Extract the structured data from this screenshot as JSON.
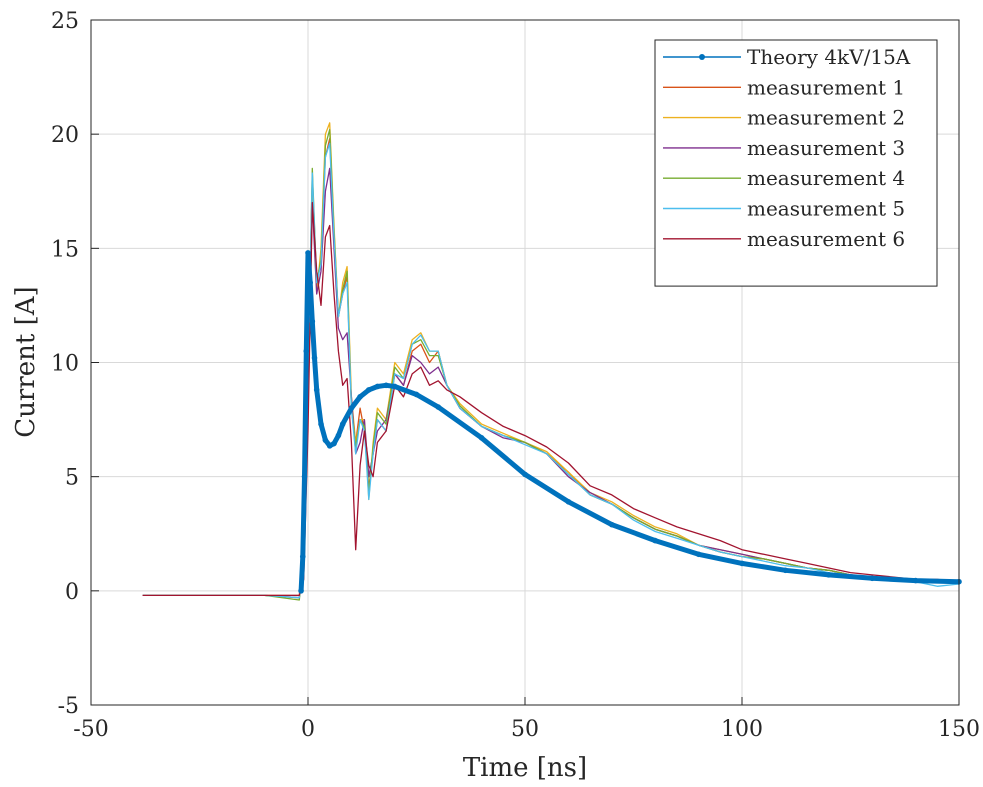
{
  "chart_data": {
    "type": "line",
    "xlabel": "Time [ns]",
    "ylabel": "Current [A]",
    "xlim": [
      -50,
      150
    ],
    "ylim": [
      -5,
      25
    ],
    "xticks": [
      -50,
      0,
      50,
      100,
      150
    ],
    "yticks": [
      -5,
      0,
      5,
      10,
      15,
      20,
      25
    ],
    "grid": true,
    "legend_position": "top-right",
    "series": [
      {
        "name": "Theory 4kV/15A",
        "color": "#0072BD",
        "style": "thick-dotted",
        "x": [
          -1.6,
          -1.2,
          -0.8,
          -0.4,
          0,
          0.5,
          1,
          1.5,
          2,
          3,
          4,
          5,
          6,
          7,
          8,
          10,
          12,
          14,
          16,
          18,
          20,
          25,
          30,
          40,
          50,
          60,
          70,
          80,
          90,
          100,
          110,
          120,
          130,
          140,
          150
        ],
        "y": [
          0.0,
          1.5,
          5.0,
          10.5,
          14.8,
          13.5,
          11.8,
          10.2,
          8.8,
          7.3,
          6.6,
          6.35,
          6.45,
          6.8,
          7.3,
          8.0,
          8.5,
          8.8,
          8.95,
          9.0,
          8.95,
          8.6,
          8.05,
          6.7,
          5.1,
          3.9,
          2.9,
          2.2,
          1.6,
          1.2,
          0.9,
          0.7,
          0.55,
          0.45,
          0.4
        ]
      },
      {
        "name": "measurement 1",
        "color": "#D95319",
        "x": [
          -38,
          -30,
          -20,
          -10,
          -2,
          -1,
          0,
          1,
          2,
          3,
          4,
          5,
          6,
          7,
          8,
          9,
          10,
          11,
          12,
          13,
          14,
          15,
          16,
          18,
          20,
          22,
          24,
          26,
          28,
          30,
          32,
          35,
          40,
          45,
          50,
          55,
          60,
          65,
          70,
          75,
          80,
          85,
          90,
          95,
          100,
          105,
          110,
          115,
          120,
          125,
          130,
          135,
          140,
          145,
          150
        ],
        "y": [
          -0.2,
          -0.2,
          -0.2,
          -0.2,
          -0.2,
          2.0,
          10.0,
          18.0,
          13.5,
          14.5,
          19.0,
          19.8,
          15.5,
          12.0,
          13.0,
          13.8,
          8.0,
          6.5,
          8.0,
          7.0,
          4.5,
          6.0,
          7.5,
          7.0,
          9.5,
          9.0,
          10.5,
          10.8,
          10.0,
          10.5,
          9.0,
          8.0,
          7.2,
          6.8,
          6.5,
          6.0,
          5.2,
          4.2,
          3.8,
          3.2,
          2.7,
          2.4,
          2.0,
          1.7,
          1.5,
          1.4,
          1.2,
          1.0,
          0.9,
          0.7,
          0.6,
          0.5,
          0.4,
          0.4,
          0.3
        ]
      },
      {
        "name": "measurement 2",
        "color": "#EDB120",
        "x": [
          -38,
          -30,
          -20,
          -10,
          -2,
          -1,
          0,
          1,
          2,
          3,
          4,
          5,
          6,
          7,
          8,
          9,
          10,
          11,
          12,
          13,
          14,
          15,
          16,
          18,
          20,
          22,
          24,
          26,
          28,
          30,
          32,
          35,
          40,
          45,
          50,
          55,
          60,
          65,
          70,
          75,
          80,
          85,
          90,
          95,
          100,
          105,
          110,
          115,
          120,
          125,
          130,
          135,
          140,
          145,
          150
        ],
        "y": [
          -0.2,
          -0.2,
          -0.2,
          -0.2,
          -0.3,
          1.5,
          9.0,
          17.5,
          13.0,
          15.0,
          20.0,
          20.5,
          16.0,
          12.0,
          13.5,
          14.2,
          8.5,
          6.5,
          7.5,
          7.5,
          4.0,
          6.5,
          8.0,
          7.5,
          10.0,
          9.5,
          11.0,
          11.3,
          10.5,
          10.5,
          9.0,
          8.2,
          7.3,
          6.9,
          6.5,
          6.1,
          5.2,
          4.3,
          3.9,
          3.3,
          2.8,
          2.5,
          2.0,
          1.8,
          1.6,
          1.4,
          1.2,
          1.0,
          0.9,
          0.7,
          0.6,
          0.5,
          0.5,
          0.4,
          0.3
        ]
      },
      {
        "name": "measurement 3",
        "color": "#7E2F8E",
        "x": [
          -38,
          -30,
          -20,
          -10,
          -2,
          -1,
          0,
          1,
          2,
          3,
          4,
          5,
          6,
          7,
          8,
          9,
          10,
          11,
          12,
          13,
          14,
          15,
          16,
          18,
          20,
          22,
          24,
          26,
          28,
          30,
          32,
          35,
          40,
          45,
          50,
          55,
          60,
          65,
          70,
          75,
          80,
          85,
          90,
          95,
          100,
          105,
          110,
          115,
          120,
          125,
          130,
          135,
          140,
          145,
          150
        ],
        "y": [
          -0.2,
          -0.2,
          -0.2,
          -0.2,
          -0.3,
          1.0,
          8.0,
          17.0,
          13.0,
          14.0,
          17.5,
          18.5,
          15.0,
          11.5,
          11.0,
          11.3,
          8.5,
          6.0,
          6.5,
          7.5,
          5.0,
          6.0,
          7.0,
          7.5,
          9.5,
          9.0,
          10.3,
          10.0,
          9.5,
          9.8,
          9.0,
          8.0,
          7.2,
          6.7,
          6.5,
          6.0,
          5.0,
          4.3,
          3.8,
          3.2,
          2.7,
          2.4,
          2.0,
          1.8,
          1.6,
          1.4,
          1.2,
          1.0,
          0.9,
          0.7,
          0.6,
          0.5,
          0.5,
          0.4,
          0.3
        ]
      },
      {
        "name": "measurement 4",
        "color": "#77AC30",
        "x": [
          -38,
          -30,
          -20,
          -10,
          -2,
          -1,
          0,
          1,
          2,
          3,
          4,
          5,
          6,
          7,
          8,
          9,
          10,
          11,
          12,
          13,
          14,
          15,
          16,
          18,
          20,
          22,
          24,
          26,
          28,
          30,
          32,
          35,
          40,
          45,
          50,
          55,
          60,
          65,
          70,
          75,
          80,
          85,
          90,
          95,
          100,
          105,
          110,
          115,
          120,
          125,
          130,
          135,
          140,
          145,
          150
        ],
        "y": [
          -0.2,
          -0.2,
          -0.2,
          -0.2,
          -0.4,
          1.5,
          9.5,
          18.5,
          13.5,
          14.5,
          19.5,
          20.2,
          15.8,
          12.0,
          13.2,
          14.0,
          8.0,
          6.3,
          7.5,
          7.2,
          4.3,
          6.3,
          7.8,
          7.3,
          9.8,
          9.3,
          10.8,
          11.0,
          10.3,
          10.3,
          9.0,
          8.1,
          7.2,
          6.8,
          6.5,
          6.0,
          5.1,
          4.2,
          3.8,
          3.2,
          2.7,
          2.4,
          2.0,
          1.7,
          1.5,
          1.4,
          1.2,
          1.0,
          0.9,
          0.7,
          0.6,
          0.5,
          0.4,
          0.4,
          0.3
        ]
      },
      {
        "name": "measurement 5",
        "color": "#4DBEEE",
        "x": [
          -38,
          -30,
          -20,
          -10,
          -2,
          -1,
          0,
          1,
          2,
          3,
          4,
          5,
          6,
          7,
          8,
          9,
          10,
          11,
          12,
          13,
          14,
          15,
          16,
          18,
          20,
          22,
          24,
          26,
          28,
          30,
          32,
          35,
          40,
          45,
          50,
          55,
          60,
          65,
          70,
          75,
          80,
          85,
          90,
          95,
          100,
          105,
          110,
          115,
          120,
          125,
          130,
          135,
          140,
          145,
          150
        ],
        "y": [
          -0.2,
          -0.2,
          -0.2,
          -0.2,
          -0.3,
          1.5,
          9.5,
          18.3,
          13.5,
          14.3,
          19.0,
          19.6,
          15.5,
          12.0,
          13.0,
          13.5,
          8.0,
          6.0,
          7.5,
          7.0,
          4.0,
          6.0,
          7.5,
          7.0,
          9.5,
          9.3,
          10.8,
          11.2,
          10.5,
          10.5,
          9.0,
          8.0,
          7.2,
          6.8,
          6.4,
          6.0,
          5.1,
          4.2,
          3.8,
          3.1,
          2.6,
          2.3,
          2.0,
          1.7,
          1.5,
          1.3,
          1.1,
          1.0,
          0.8,
          0.7,
          0.6,
          0.5,
          0.4,
          0.2,
          0.3
        ]
      },
      {
        "name": "measurement 6",
        "color": "#A2142F",
        "x": [
          -38,
          -30,
          -20,
          -10,
          -2,
          -1,
          0,
          1,
          2,
          3,
          4,
          5,
          6,
          7,
          8,
          9,
          10,
          11,
          12,
          13,
          14,
          15,
          16,
          18,
          20,
          22,
          24,
          26,
          28,
          30,
          32,
          35,
          40,
          45,
          50,
          55,
          60,
          65,
          70,
          75,
          80,
          85,
          90,
          95,
          100,
          105,
          110,
          115,
          120,
          125,
          130,
          135,
          140,
          145,
          150
        ],
        "y": [
          -0.2,
          -0.2,
          -0.2,
          -0.2,
          -0.2,
          0.5,
          7.0,
          17.0,
          14.0,
          12.5,
          15.5,
          16.0,
          13.0,
          10.5,
          9.0,
          9.3,
          6.5,
          1.8,
          5.5,
          7.0,
          5.5,
          5.0,
          6.5,
          7.0,
          9.0,
          8.5,
          9.5,
          9.8,
          9.0,
          9.2,
          8.8,
          8.5,
          7.8,
          7.2,
          6.8,
          6.3,
          5.6,
          4.6,
          4.2,
          3.6,
          3.2,
          2.8,
          2.5,
          2.2,
          1.8,
          1.6,
          1.4,
          1.2,
          1.0,
          0.8,
          0.7,
          0.6,
          0.5,
          0.5,
          0.4
        ]
      }
    ]
  }
}
